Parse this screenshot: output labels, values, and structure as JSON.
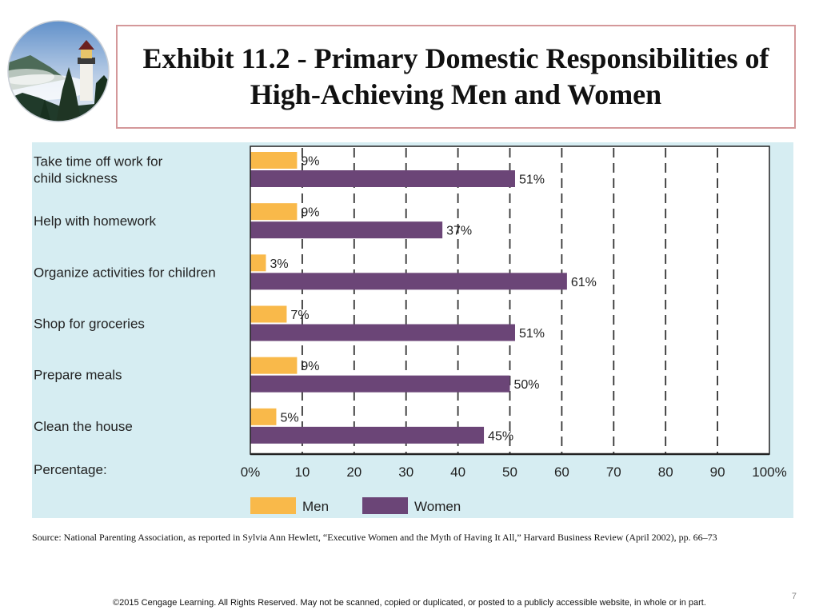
{
  "slide": {
    "title": "Exhibit 11.2 - Primary Domestic Responsibilities of High-Achieving Men and Women",
    "source": "Source: National Parenting Association, as reported in Sylvia Ann Hewlett, “Executive Women and the Myth of Having It All,” Harvard Business Review (April 2002), pp. 66–73",
    "page_number": "7",
    "footer": "©2015 Cengage Learning. All Rights Reserved. May not be scanned, copied or duplicated, or posted to a publicly accessible website, in whole or in part.",
    "logo_icon": "lighthouse-photo-icon"
  },
  "chart_data": {
    "type": "bar",
    "orientation": "horizontal",
    "categories": [
      [
        "Take time off work for",
        "child sickness"
      ],
      [
        "Help with homework"
      ],
      [
        "Organize activities for children"
      ],
      [
        "Shop for groceries"
      ],
      [
        "Prepare meals"
      ],
      [
        "Clean the house"
      ]
    ],
    "series": [
      {
        "name": "Men",
        "color": "#f9b94a",
        "values": [
          9,
          9,
          3,
          7,
          9,
          5
        ],
        "labels": [
          "9%",
          "9%",
          "3%",
          "7%",
          "9%",
          "5%"
        ]
      },
      {
        "name": "Women",
        "color": "#6b4577",
        "values": [
          51,
          37,
          61,
          51,
          50,
          45
        ],
        "labels": [
          "51%",
          "37%",
          "61%",
          "51%",
          "50%",
          "45%"
        ]
      }
    ],
    "xlabel": "Percentage:",
    "xlim": [
      0,
      100
    ],
    "ticks": [
      "0%",
      "10",
      "20",
      "30",
      "40",
      "50",
      "60",
      "70",
      "80",
      "90",
      "100%"
    ],
    "grid": "dashed vertical",
    "legend": "bottom",
    "background_color": "#d6edf2"
  }
}
